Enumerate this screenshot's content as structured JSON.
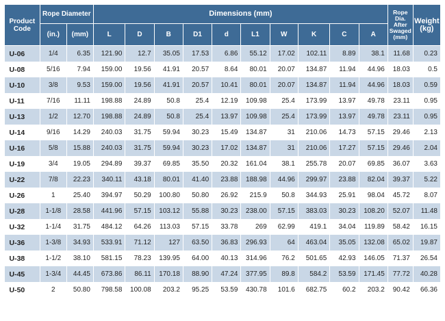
{
  "header": {
    "product_code": "Product Code",
    "rope_diameter": "Rope Diameter",
    "dimensions": "Dimensions (mm)",
    "rope_dia_after": "Rope Dia. After Swaged (mm)",
    "weight": "Weight (kg)",
    "inch": "(in.)",
    "mm": "(mm)",
    "dim_cols": [
      "L",
      "D",
      "B",
      "D1",
      "d",
      "L1",
      "W",
      "K",
      "C",
      "A"
    ]
  },
  "rows": [
    [
      "U-06",
      "1/4",
      "6.35",
      "121.90",
      "12.7",
      "35.05",
      "17.53",
      "6.86",
      "55.12",
      "17.02",
      "102.11",
      "8.89",
      "38.1",
      "11.68",
      "0.23"
    ],
    [
      "U-08",
      "5/16",
      "7.94",
      "159.00",
      "19.56",
      "41.91",
      "20.57",
      "8.64",
      "80.01",
      "20.07",
      "134.87",
      "11.94",
      "44.96",
      "18.03",
      "0.5"
    ],
    [
      "U-10",
      "3/8",
      "9.53",
      "159.00",
      "19.56",
      "41.91",
      "20.57",
      "10.41",
      "80.01",
      "20.07",
      "134.87",
      "11.94",
      "44.96",
      "18.03",
      "0.59"
    ],
    [
      "U-11",
      "7/16",
      "11.11",
      "198.88",
      "24.89",
      "50.8",
      "25.4",
      "12.19",
      "109.98",
      "25.4",
      "173.99",
      "13.97",
      "49.78",
      "23.11",
      "0.95"
    ],
    [
      "U-13",
      "1/2",
      "12.70",
      "198.88",
      "24.89",
      "50.8",
      "25.4",
      "13.97",
      "109.98",
      "25.4",
      "173.99",
      "13.97",
      "49.78",
      "23.11",
      "0.95"
    ],
    [
      "U-14",
      "9/16",
      "14.29",
      "240.03",
      "31.75",
      "59.94",
      "30.23",
      "15.49",
      "134.87",
      "31",
      "210.06",
      "14.73",
      "57.15",
      "29.46",
      "2.13"
    ],
    [
      "U-16",
      "5/8",
      "15.88",
      "240.03",
      "31.75",
      "59.94",
      "30.23",
      "17.02",
      "134.87",
      "31",
      "210.06",
      "17.27",
      "57.15",
      "29.46",
      "2.04"
    ],
    [
      "U-19",
      "3/4",
      "19.05",
      "294.89",
      "39.37",
      "69.85",
      "35.50",
      "20.32",
      "161.04",
      "38.1",
      "255.78",
      "20.07",
      "69.85",
      "36.07",
      "3.63"
    ],
    [
      "U-22",
      "7/8",
      "22.23",
      "340.11",
      "43.18",
      "80.01",
      "41.40",
      "23.88",
      "188.98",
      "44.96",
      "299.97",
      "23.88",
      "82.04",
      "39.37",
      "5.22"
    ],
    [
      "U-26",
      "1",
      "25.40",
      "394.97",
      "50.29",
      "100.80",
      "50.80",
      "26.92",
      "215.9",
      "50.8",
      "344.93",
      "25.91",
      "98.04",
      "45.72",
      "8.07"
    ],
    [
      "U-28",
      "1-1/8",
      "28.58",
      "441.96",
      "57.15",
      "103.12",
      "55.88",
      "30.23",
      "238.00",
      "57.15",
      "383.03",
      "30.23",
      "108.20",
      "52.07",
      "11.48"
    ],
    [
      "U-32",
      "1-1/4",
      "31.75",
      "484.12",
      "64.26",
      "113.03",
      "57.15",
      "33.78",
      "269",
      "62.99",
      "419.1",
      "34.04",
      "119.89",
      "58.42",
      "16.15"
    ],
    [
      "U-36",
      "1-3/8",
      "34.93",
      "533.91",
      "71.12",
      "127",
      "63.50",
      "36.83",
      "296.93",
      "64",
      "463.04",
      "35.05",
      "132.08",
      "65.02",
      "19.87"
    ],
    [
      "U-38",
      "1-1/2",
      "38.10",
      "581.15",
      "78.23",
      "139.95",
      "64.00",
      "40.13",
      "314.96",
      "76.2",
      "501.65",
      "42.93",
      "146.05",
      "71.37",
      "26.54"
    ],
    [
      "U-45",
      "1-3/4",
      "44.45",
      "673.86",
      "86.11",
      "170.18",
      "88.90",
      "47.24",
      "377.95",
      "89.8",
      "584.2",
      "53.59",
      "171.45",
      "77.72",
      "40.28"
    ],
    [
      "U-50",
      "2",
      "50.80",
      "798.58",
      "100.08",
      "203.2",
      "95.25",
      "53.59",
      "430.78",
      "101.6",
      "682.75",
      "60.2",
      "203.2",
      "90.42",
      "66.36"
    ]
  ]
}
